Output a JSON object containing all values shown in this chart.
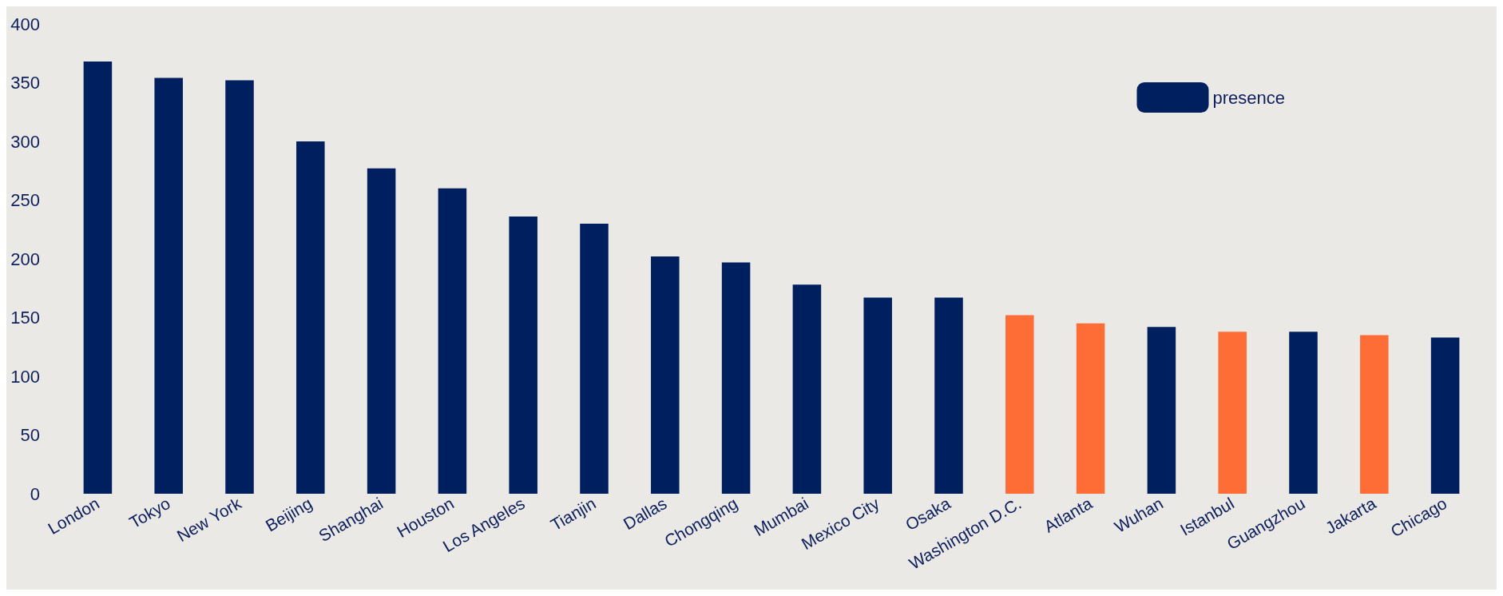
{
  "chart_data": {
    "type": "bar",
    "categories": [
      "London",
      "Tokyo",
      "New York",
      "Beijing",
      "Shanghai",
      "Houston",
      "Los Angeles",
      "Tianjin",
      "Dallas",
      "Chongqing",
      "Mumbai",
      "Mexico City",
      "Osaka",
      "Washington D.C.",
      "Atlanta",
      "Wuhan",
      "Istanbul",
      "Guangzhou",
      "Jakarta",
      "Chicago"
    ],
    "series": [
      {
        "name": "presence",
        "values": [
          368,
          354,
          352,
          300,
          277,
          260,
          236,
          230,
          202,
          197,
          178,
          167,
          167,
          152,
          145,
          142,
          138,
          138,
          135,
          133
        ]
      }
    ],
    "colors": [
      "#001f5f",
      "#001f5f",
      "#001f5f",
      "#001f5f",
      "#001f5f",
      "#001f5f",
      "#001f5f",
      "#001f5f",
      "#001f5f",
      "#001f5f",
      "#001f5f",
      "#001f5f",
      "#001f5f",
      "#ff6d36",
      "#ff6d36",
      "#001f5f",
      "#ff6d36",
      "#001f5f",
      "#ff6d36",
      "#001f5f"
    ],
    "ylim": [
      0,
      400
    ],
    "yticks": [
      0,
      50,
      100,
      150,
      200,
      250,
      300,
      350,
      400
    ],
    "grid": false,
    "legend": "top right"
  }
}
